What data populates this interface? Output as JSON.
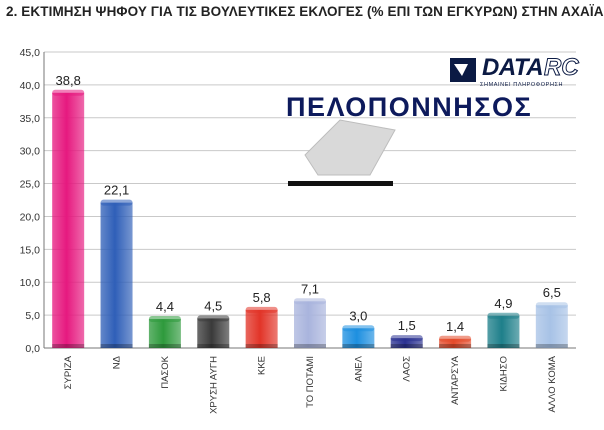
{
  "title": "2. ΕΚΤΙΜΗΣΗ ΨΗΦΟΥ ΓΙΑ ΤΙΣ ΒΟΥΛΕΥΤΙΚΕΣ ΕΚΛΟΓΕΣ (% ΕΠΙ ΤΩΝ ΕΓΚΥΡΩΝ) ΣΤΗΝ ΑΧΑΪΑ",
  "logo": {
    "data_text": "DATA",
    "rc_text": "RC",
    "tagline": "ΣΗΜΑΙΝΕΙ ΠΛΗΡΟΦΟΡΗΣΗ",
    "icon": "ballot-box-icon"
  },
  "region": "ΠΕΛΟΠΟΝΝΗΣΟΣ",
  "chart_data": {
    "type": "bar",
    "categories": [
      "ΣΥΡΙΖΑ",
      "ΝΔ",
      "ΠΑΣΟΚ",
      "ΧΡΥΣΗ ΑΥΓΗ",
      "ΚΚΕ",
      "ΤΟ ΠΟΤΑΜΙ",
      "ΑΝΕΛ",
      "ΛΑΟΣ",
      "ΑΝΤΑΡΣΥΑ",
      "ΚΙΔΗΣΟ",
      "ΑΛΛΟ ΚΟΜΑ"
    ],
    "values": [
      38.8,
      22.1,
      4.4,
      4.5,
      5.8,
      7.1,
      3.0,
      1.5,
      1.4,
      4.9,
      6.5
    ],
    "value_labels": [
      "38,8",
      "22,1",
      "4,4",
      "4,5",
      "5,8",
      "7,1",
      "3,0",
      "1,5",
      "1,4",
      "4,9",
      "6,5"
    ],
    "colors": [
      "#e6197f",
      "#2f5fb8",
      "#2e9a3c",
      "#3a3a3a",
      "#e23428",
      "#a9b4dd",
      "#1d8fe0",
      "#2a3191",
      "#e44a2a",
      "#1e7f8a",
      "#a7c2e6"
    ],
    "ylim": [
      0,
      45
    ],
    "yticks": [
      "0,0",
      "5,0",
      "10,0",
      "15,0",
      "20,0",
      "25,0",
      "30,0",
      "35,0",
      "40,0",
      "45,0"
    ],
    "ytick_values": [
      0,
      5,
      10,
      15,
      20,
      25,
      30,
      35,
      40,
      45
    ],
    "grid": true,
    "xlabel": "",
    "ylabel": ""
  }
}
